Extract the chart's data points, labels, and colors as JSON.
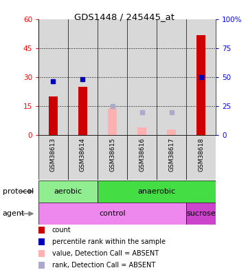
{
  "title": "GDS1448 / 245445_at",
  "samples": [
    "GSM38613",
    "GSM38614",
    "GSM38615",
    "GSM38616",
    "GSM38617",
    "GSM38618"
  ],
  "count_values": [
    20,
    25,
    null,
    null,
    null,
    52
  ],
  "count_absent_values": [
    null,
    null,
    14,
    4,
    3,
    null
  ],
  "rank_values_left": [
    28,
    29,
    null,
    null,
    null,
    30
  ],
  "rank_absent_values_left": [
    null,
    null,
    15,
    12,
    12,
    null
  ],
  "left_ylim": [
    0,
    60
  ],
  "left_yticks": [
    0,
    15,
    30,
    45,
    60
  ],
  "right_ylim": [
    0,
    100
  ],
  "right_yticks": [
    0,
    25,
    50,
    75,
    100
  ],
  "right_yticklabels": [
    "0",
    "25",
    "50",
    "75",
    "100%"
  ],
  "count_color": "#CC0000",
  "count_absent_color": "#FFB0B0",
  "rank_color": "#0000BB",
  "rank_absent_color": "#AAAACC",
  "sample_bg_color": "#D8D8D8",
  "aerobic_color": "#90EE90",
  "anaerobic_color": "#44DD44",
  "control_color": "#EE88EE",
  "sucrose_color": "#CC44CC",
  "legend_items": [
    {
      "label": "count",
      "color": "#CC0000"
    },
    {
      "label": "percentile rank within the sample",
      "color": "#0000BB"
    },
    {
      "label": "value, Detection Call = ABSENT",
      "color": "#FFB0B0"
    },
    {
      "label": "rank, Detection Call = ABSENT",
      "color": "#AAAACC"
    }
  ]
}
